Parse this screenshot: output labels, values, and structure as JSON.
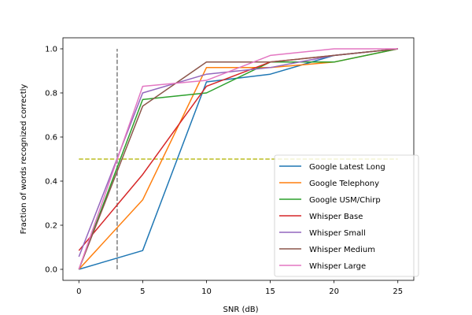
{
  "chart_data": {
    "type": "line",
    "title": "",
    "xlabel": "SNR (dB)",
    "ylabel": "Fraction of words recognized correctly",
    "xlim": [
      -1.25,
      26.25
    ],
    "ylim": [
      -0.05,
      1.05
    ],
    "x_ticks": [
      0,
      5,
      10,
      15,
      20,
      25
    ],
    "y_ticks": [
      0.0,
      0.2,
      0.4,
      0.6,
      0.8,
      1.0
    ],
    "x_tick_labels": [
      "0",
      "5",
      "10",
      "15",
      "20",
      "25"
    ],
    "y_tick_labels": [
      "0.0",
      "0.2",
      "0.4",
      "0.6",
      "0.8",
      "1.0"
    ],
    "grid": false,
    "legend_position": "lower-right",
    "x": [
      0,
      5,
      10,
      15,
      20,
      25
    ],
    "series": [
      {
        "name": "Google Latest Long",
        "color": "#1f77b4",
        "values": [
          0.0,
          0.085,
          0.85,
          0.885,
          0.97,
          1.0
        ]
      },
      {
        "name": "Google Telephony",
        "color": "#ff7f0e",
        "values": [
          0.0,
          0.315,
          0.915,
          0.915,
          0.94,
          1.0
        ]
      },
      {
        "name": "Google USM/Chirp",
        "color": "#2ca02c",
        "values": [
          0.0,
          0.77,
          0.8,
          0.94,
          0.94,
          1.0
        ]
      },
      {
        "name": "Whisper Base",
        "color": "#d62728",
        "values": [
          0.085,
          0.43,
          0.83,
          0.94,
          0.97,
          1.0
        ]
      },
      {
        "name": "Whisper Small",
        "color": "#9467bd",
        "values": [
          0.057,
          0.8,
          0.885,
          0.915,
          0.97,
          1.0
        ]
      },
      {
        "name": "Whisper Medium",
        "color": "#8c564b",
        "values": [
          0.0,
          0.74,
          0.94,
          0.94,
          0.97,
          1.0
        ]
      },
      {
        "name": "Whisper Large",
        "color": "#e377c2",
        "values": [
          0.0,
          0.83,
          0.857,
          0.97,
          1.0,
          1.0
        ]
      }
    ],
    "reference_lines": [
      {
        "orientation": "vertical",
        "x": 3,
        "y_range": [
          0.0,
          1.0
        ],
        "color": "#7f7f7f",
        "style": "dashed"
      },
      {
        "orientation": "horizontal",
        "y": 0.5,
        "x_range": [
          0,
          25
        ],
        "color": "#bcbd22",
        "style": "dashed"
      }
    ]
  }
}
